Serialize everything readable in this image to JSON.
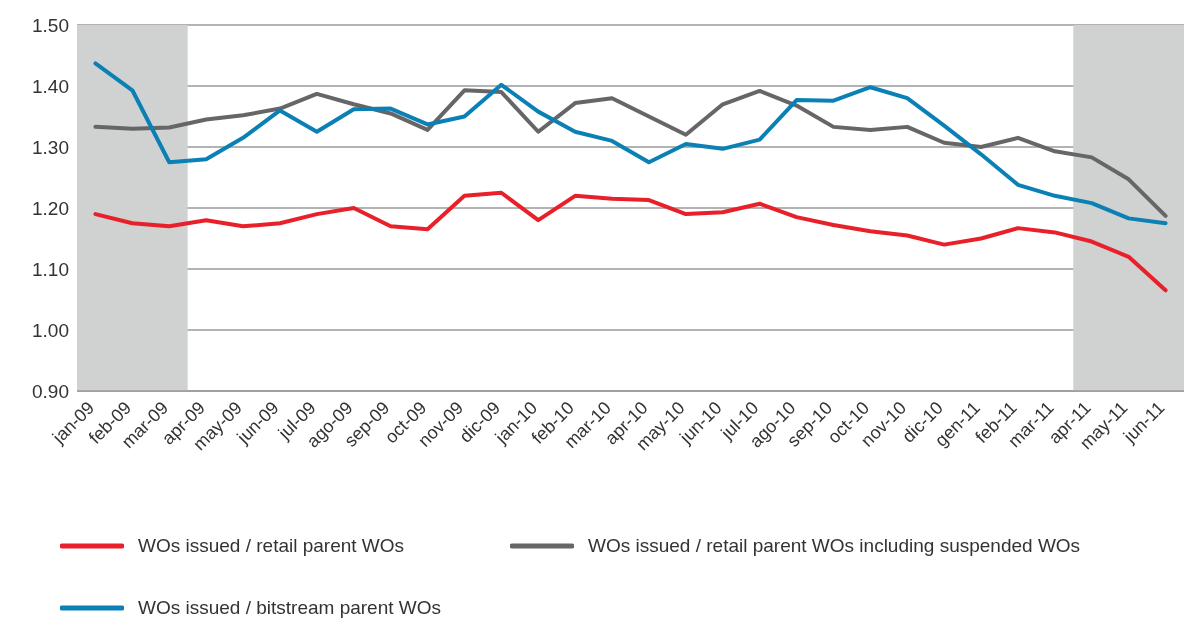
{
  "chart_data": {
    "type": "line",
    "categories": [
      "jan-09",
      "feb-09",
      "mar-09",
      "apr-09",
      "may-09",
      "jun-09",
      "jul-09",
      "ago-09",
      "sep-09",
      "oct-09",
      "nov-09",
      "dic-09",
      "jan-10",
      "feb-10",
      "mar-10",
      "apr-10",
      "may-10",
      "jun-10",
      "jul-10",
      "ago-10",
      "sep-10",
      "oct-10",
      "nov-10",
      "dic-10",
      "gen-11",
      "feb-11",
      "mar-11",
      "apr-11",
      "may-11",
      "jun-11"
    ],
    "series": [
      {
        "name": "WOs issued / retail parent WOs",
        "color": "#e8202a",
        "values": [
          1.19,
          1.175,
          1.17,
          1.18,
          1.17,
          1.175,
          1.19,
          1.2,
          1.17,
          1.165,
          1.22,
          1.225,
          1.18,
          1.22,
          1.215,
          1.213,
          1.19,
          1.193,
          1.207,
          1.185,
          1.172,
          1.162,
          1.155,
          1.14,
          1.15,
          1.167,
          1.16,
          1.145,
          1.12,
          1.065
        ]
      },
      {
        "name": "WOs issued / retail parent WOs including suspended WOs",
        "color": "#666669",
        "values": [
          1.333,
          1.33,
          1.332,
          1.345,
          1.352,
          1.363,
          1.387,
          1.37,
          1.355,
          1.328,
          1.393,
          1.39,
          1.325,
          1.372,
          1.38,
          1.35,
          1.32,
          1.37,
          1.392,
          1.368,
          1.333,
          1.328,
          1.333,
          1.307,
          1.3,
          1.315,
          1.293,
          1.283,
          1.247,
          1.187
        ]
      },
      {
        "name": "WOs issued / bitstream parent WOs",
        "color": "#0a80b4",
        "values": [
          1.437,
          1.393,
          1.275,
          1.28,
          1.315,
          1.36,
          1.325,
          1.362,
          1.363,
          1.337,
          1.35,
          1.402,
          1.358,
          1.325,
          1.31,
          1.275,
          1.305,
          1.297,
          1.312,
          1.377,
          1.376,
          1.398,
          1.38,
          1.335,
          1.288,
          1.238,
          1.22,
          1.208,
          1.183,
          1.175
        ]
      }
    ],
    "ylim": [
      0.9,
      1.5
    ],
    "yticks": [
      {
        "value": 0.9,
        "label": "0.90"
      },
      {
        "value": 1.0,
        "label": "1.00"
      },
      {
        "value": 1.1,
        "label": "1.10"
      },
      {
        "value": 1.2,
        "label": "1.20"
      },
      {
        "value": 1.3,
        "label": "1.30"
      },
      {
        "value": 1.4,
        "label": "1.40"
      },
      {
        "value": 1.5,
        "label": "1.50"
      }
    ],
    "bands": [
      {
        "axis": "x",
        "from": "jan-09",
        "to": "mar-09",
        "color": "#d0d1d1"
      },
      {
        "axis": "x",
        "from": "apr-11",
        "to": "jun-11",
        "color": "#d0d1d1"
      }
    ],
    "grid": "y",
    "legend": "bottom",
    "marker": "none",
    "line_style": "solid"
  }
}
